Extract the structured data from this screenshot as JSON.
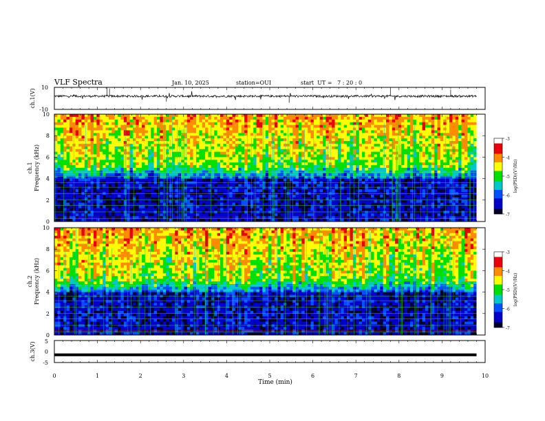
{
  "header": {
    "title": "VLF Spectra",
    "date": "Jan. 10, 2025",
    "station": "station=OUI",
    "start_ut": "start  UT =   7 : 20 : 0"
  },
  "colorbar": {
    "label": "log(PSD)(V²/Hz)",
    "ticks": [
      "-3",
      "-4",
      "-5",
      "-6",
      "-7"
    ],
    "colors": [
      "#ffffff",
      "#e8000b",
      "#ff8c00",
      "#ffff00",
      "#00e000",
      "#00c8c8",
      "#0050ff",
      "#0000c8",
      "#000028"
    ]
  },
  "chart_data": [
    {
      "type": "line",
      "name_label": "ch.1(V)",
      "ylabel": "ch.1(V)",
      "ylim": [
        -10,
        10
      ],
      "yticks": [
        "10",
        "-10"
      ],
      "xlim": [
        0,
        10
      ],
      "baseline_v": 2,
      "noise_amplitude_v": 1,
      "spikes": [
        {
          "x": 1.22,
          "y": 10
        },
        {
          "x": 1.28,
          "y": 9
        },
        {
          "x": 2.6,
          "y": -3
        },
        {
          "x": 5.45,
          "y": -4
        },
        {
          "x": 7.8,
          "y": 9
        },
        {
          "x": 9.2,
          "y": 8
        }
      ]
    },
    {
      "type": "heatmap",
      "ylabel_top": "ch.1",
      "ylabel": "Frequency (kHz)",
      "ylim": [
        0,
        10
      ],
      "yticks": [
        "0",
        "2",
        "4",
        "6",
        "8",
        "10"
      ],
      "xlim": [
        0,
        9.8
      ],
      "zlim": [
        -7,
        -3
      ],
      "description": "broadband VLF spectrogram; high PSD above ~5 kHz, low PSD below ~4 kHz, narrowband lines below 5 kHz"
    },
    {
      "type": "heatmap",
      "ylabel_top": "ch.2",
      "ylabel": "Frequency (kHz)",
      "ylim": [
        0,
        10
      ],
      "yticks": [
        "0",
        "2",
        "4",
        "6",
        "8",
        "10"
      ],
      "xlim": [
        0,
        9.8
      ],
      "zlim": [
        -7,
        -3
      ]
    },
    {
      "type": "line",
      "ylabel": "ch.3(V)",
      "ylim": [
        -5,
        5
      ],
      "yticks": [
        "5",
        "0",
        "-5"
      ],
      "xlim": [
        0,
        10
      ],
      "constant_value_v": -1.5
    }
  ],
  "xaxis": {
    "label": "Time (min)",
    "ticks": [
      "0",
      "1",
      "2",
      "3",
      "4",
      "5",
      "6",
      "7",
      "8",
      "9",
      "10"
    ]
  }
}
